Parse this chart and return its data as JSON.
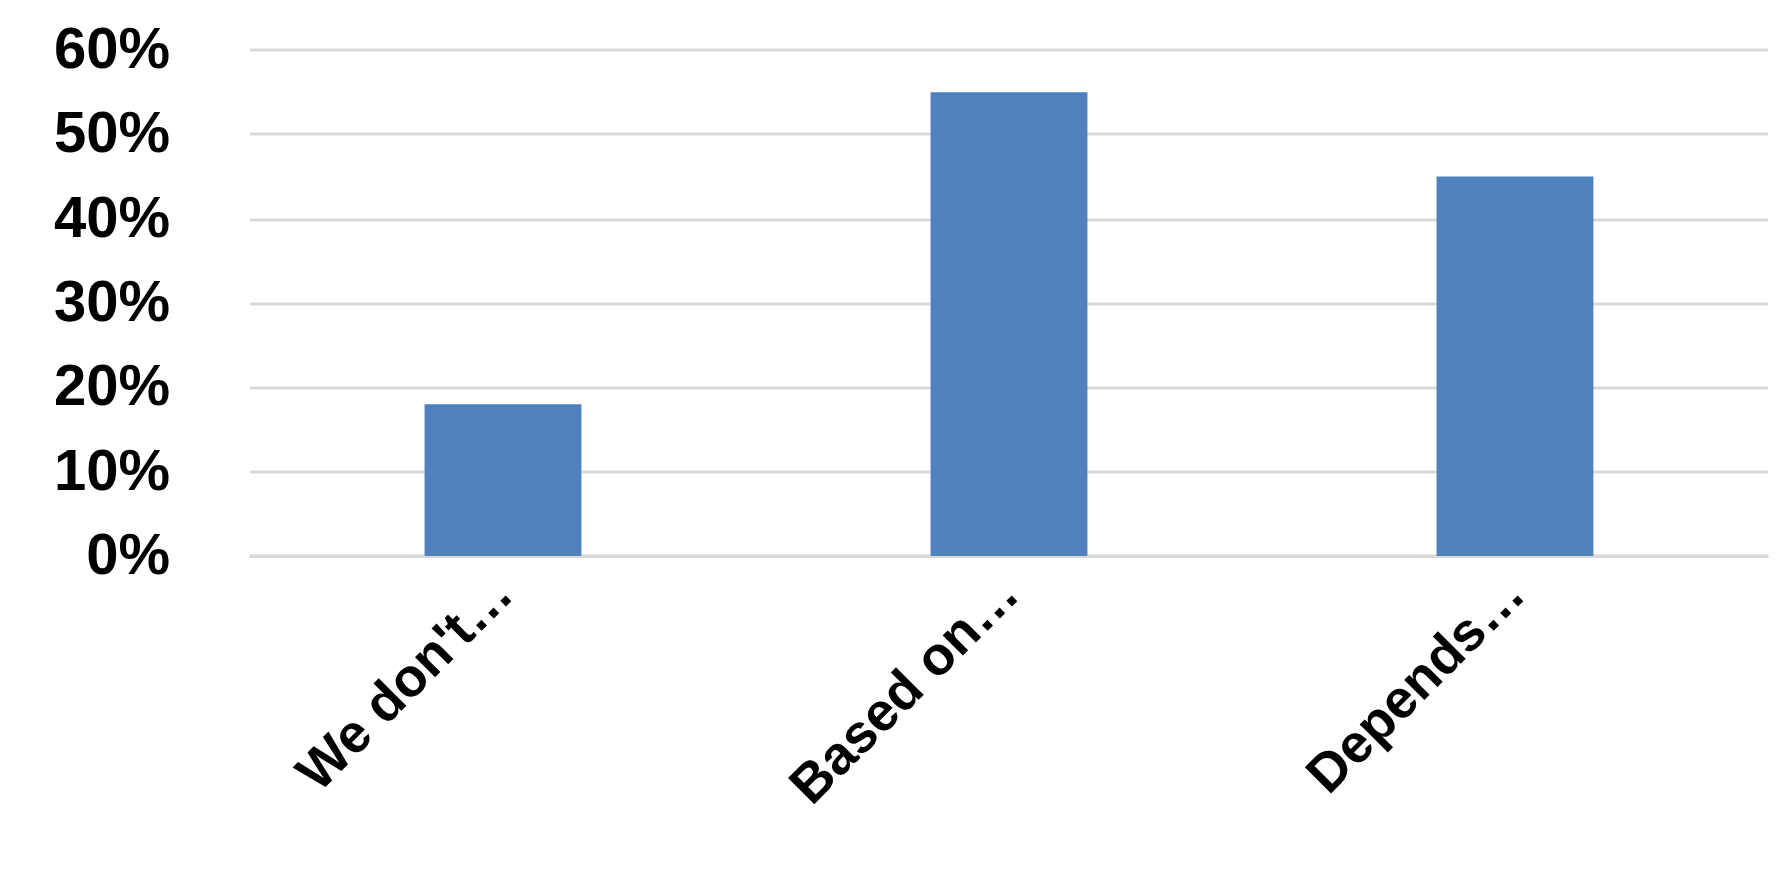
{
  "chart_data": {
    "type": "bar",
    "categories": [
      "We don't…",
      "Based on…",
      "Depends…"
    ],
    "values": [
      18,
      55,
      45
    ],
    "color": "#4f81bd",
    "ylim": [
      0,
      60
    ],
    "yticks": [
      {
        "value": 0,
        "label": "0%"
      },
      {
        "value": 10,
        "label": "10%"
      },
      {
        "value": 20,
        "label": "20%"
      },
      {
        "value": 30,
        "label": "30%"
      },
      {
        "value": 40,
        "label": "40%"
      },
      {
        "value": 50,
        "label": "50%"
      },
      {
        "value": 60,
        "label": "60%"
      }
    ],
    "grid": true
  }
}
